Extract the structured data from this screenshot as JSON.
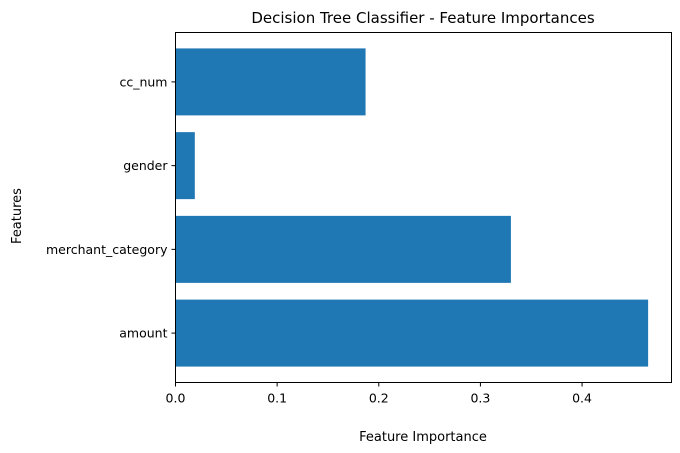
{
  "chart_data": {
    "type": "bar",
    "orientation": "horizontal",
    "title": "Decision Tree Classifier - Feature Importances",
    "xlabel": "Feature Importance",
    "ylabel": "Features",
    "categories": [
      "amount",
      "merchant_category",
      "gender",
      "cc_num"
    ],
    "values": [
      0.465,
      0.33,
      0.019,
      0.187
    ],
    "xlim": [
      0,
      0.488
    ],
    "xticks": [
      0.0,
      0.1,
      0.2,
      0.3,
      0.4
    ],
    "xtick_labels": [
      "0.0",
      "0.1",
      "0.2",
      "0.3",
      "0.4"
    ],
    "bar_color": "#1f77b4",
    "grid": false
  }
}
